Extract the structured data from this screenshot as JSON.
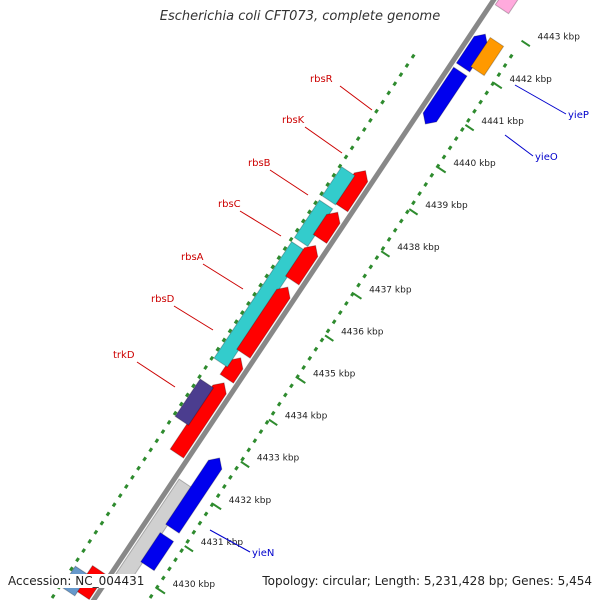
{
  "title": "Escherichia coli CFT073, complete genome",
  "accession": "Accession: NC_004431",
  "summary": "Topology: circular; Length: 5,231,428 bp; Genes: 5,454",
  "colors": {
    "backbone": "#888888",
    "dots": "#2e8b2e",
    "ruler": "#2e8b2e",
    "red": "#ff0000",
    "blue": "#0000ee",
    "cyan": "#33cccc",
    "navy": "#4b3d8f",
    "orange": "#ff9900",
    "pink": "#ffaadd",
    "gray": "#d0d0d0",
    "steel": "#6699cc",
    "red_label": "#cc0000",
    "blue_label": "#0000cc"
  },
  "ruler_ticks": [
    {
      "label": "4430 kbp"
    },
    {
      "label": "4431 kbp"
    },
    {
      "label": "4432 kbp"
    },
    {
      "label": "4433 kbp"
    },
    {
      "label": "4434 kbp"
    },
    {
      "label": "4435 kbp"
    },
    {
      "label": "4436 kbp"
    },
    {
      "label": "4437 kbp"
    },
    {
      "label": "4438 kbp"
    },
    {
      "label": "4439 kbp"
    },
    {
      "label": "4440 kbp"
    },
    {
      "label": "4441 kbp"
    },
    {
      "label": "4442 kbp"
    },
    {
      "label": "4443 kbp"
    }
  ],
  "gene_labels": [
    {
      "name": "rbsR",
      "color": "red_label"
    },
    {
      "name": "rbsK",
      "color": "red_label"
    },
    {
      "name": "rbsB",
      "color": "red_label"
    },
    {
      "name": "rbsC",
      "color": "red_label"
    },
    {
      "name": "rbsA",
      "color": "red_label"
    },
    {
      "name": "rbsD",
      "color": "red_label"
    },
    {
      "name": "trkD",
      "color": "red_label"
    },
    {
      "name": "yieP",
      "color": "blue_label"
    },
    {
      "name": "yieO",
      "color": "blue_label"
    },
    {
      "name": "yieN",
      "color": "blue_label"
    }
  ]
}
